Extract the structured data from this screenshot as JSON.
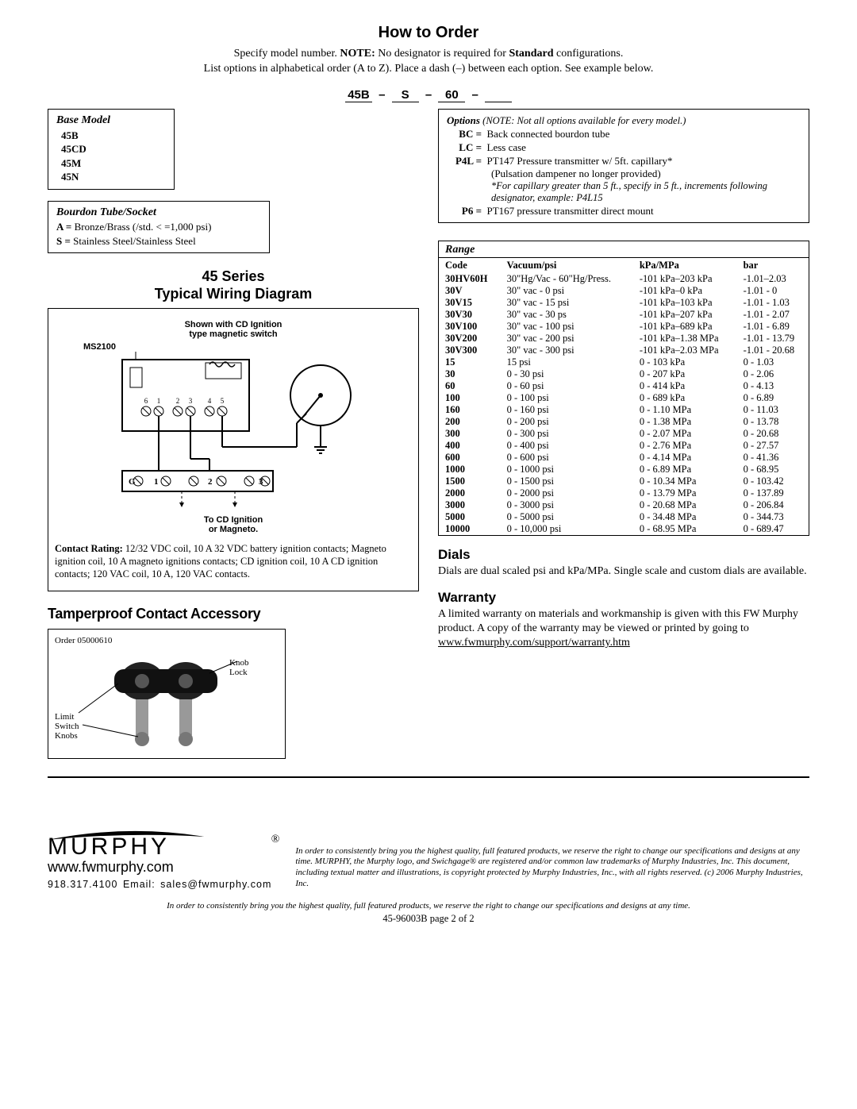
{
  "title": "How to Order",
  "intro1_pre": "Specify model number. ",
  "intro1_bold": "NOTE:",
  "intro1_post": " No designator is required for ",
  "intro1_bold2": "Standard",
  "intro1_end": " configurations.",
  "intro2": "List options in alphabetical order (A to Z). Place a dash (–) between each option. See example below.",
  "designator": {
    "a": "45B",
    "b": "S",
    "c": "60",
    "sep": "–"
  },
  "base": {
    "title": "Base Model",
    "items": [
      "45B",
      "45CD",
      "45M",
      "45N"
    ]
  },
  "bourdon": {
    "title": "Bourdon Tube/Socket",
    "a_label": "A = ",
    "a_text": "Bronze/Brass (/std. < =1,000 psi)",
    "s_label": "S = ",
    "s_text": "Stainless Steel/Stainless Steel"
  },
  "series": {
    "h1": "45 Series",
    "h2": "Typical Wiring Diagram",
    "sub1": "Shown with CD Ignition",
    "sub2": "type magnetic switch",
    "ms": "MS2100",
    "note1": "To CD Ignition",
    "note2": "or Magneto.",
    "rating_label": "Contact Rating:",
    "rating_text": " 12/32 VDC coil, 10 A 32 VDC battery ignition contacts; Magneto ignition coil, 10 A magneto ignitions contacts; CD ignition coil, 10 A CD ignition contacts; 120 VAC coil, 10 A, 120 VAC contacts."
  },
  "tamper": {
    "title": "Tamperproof Contact Accessory",
    "order": "Order 05000610",
    "knob": "Knob Lock",
    "limit": "Limit Switch Knobs"
  },
  "options": {
    "title": "Options",
    "title_note": "(NOTE: Not all options available for every model.)",
    "bc": {
      "code": "BC =",
      "text": "Back connected bourdon tube"
    },
    "lc": {
      "code": "LC =",
      "text": "Less case"
    },
    "p4l": {
      "code": "P4L =",
      "text": "PT147 Pressure transmitter w/ 5ft. capillary*"
    },
    "p4l_sub": "(Pulsation dampener no longer provided)",
    "p4l_note": "*For capillary greater than 5 ft., specify in 5 ft., increments following designator, example: P4L15",
    "p6": {
      "code": "P6 =",
      "text": "PT167 pressure transmitter direct mount"
    }
  },
  "range": {
    "title": "Range",
    "headers": [
      "Code",
      "Vacuum/psi",
      "kPa/MPa",
      "bar"
    ],
    "rows": [
      [
        "30HV60H",
        "30\"Hg/Vac - 60\"Hg/Press.",
        "-101 kPa–203 kPa",
        "-1.01–2.03"
      ],
      [
        "30V",
        "30\"  vac - 0 psi",
        "-101 kPa–0 kPa",
        "-1.01 - 0"
      ],
      [
        "30V15",
        "30\"  vac - 15 psi",
        "-101 kPa–103 kPa",
        "-1.01 - 1.03"
      ],
      [
        "30V30",
        "30\"  vac - 30 ps",
        "-101 kPa–207 kPa",
        "-1.01 - 2.07"
      ],
      [
        "30V100",
        "30\"  vac - 100 psi",
        "-101 kPa–689 kPa",
        "-1.01 - 6.89"
      ],
      [
        "30V200",
        "30\"  vac - 200 psi",
        "-101 kPa–1.38 MPa",
        "-1.01 - 13.79"
      ],
      [
        "30V300",
        "30\"  vac - 300 psi",
        "-101 kPa–2.03 MPa",
        "-1.01 - 20.68"
      ],
      [
        "15",
        "15 psi",
        "0 - 103 kPa",
        "0 - 1.03"
      ],
      [
        "30",
        "0 - 30 psi",
        "0 - 207 kPa",
        "0 - 2.06"
      ],
      [
        "60",
        "0 - 60 psi",
        "0 - 414 kPa",
        "0 - 4.13"
      ],
      [
        "100",
        "0 - 100 psi",
        "0 - 689 kPa",
        "0 - 6.89"
      ],
      [
        "160",
        "0 - 160 psi",
        "0 - 1.10 MPa",
        "0 - 11.03"
      ],
      [
        "200",
        "0 - 200 psi",
        "0 - 1.38 MPa",
        "0 - 13.78"
      ],
      [
        "300",
        "0 - 300 psi",
        "0 - 2.07 MPa",
        "0 - 20.68"
      ],
      [
        "400",
        "0 - 400 psi",
        "0 - 2.76 MPa",
        "0 - 27.57"
      ],
      [
        "600",
        "0 - 600 psi",
        "0 - 4.14 MPa",
        "0 - 41.36"
      ],
      [
        "1000",
        "0 - 1000 psi",
        "0 - 6.89 MPa",
        "0 - 68.95"
      ],
      [
        "1500",
        "0 - 1500 psi",
        "0 - 10.34 MPa",
        "0 - 103.42"
      ],
      [
        "2000",
        "0 - 2000 psi",
        "0 - 13.79 MPa",
        "0 - 137.89"
      ],
      [
        "3000",
        "0 - 3000 psi",
        "0 - 20.68 MPa",
        "0 - 206.84"
      ],
      [
        "5000",
        "0 - 5000 psi",
        "0 - 34.48 MPa",
        "0 - 344.73"
      ],
      [
        "10000",
        "0 - 10,000 psi",
        "0 - 68.95 MPa",
        "0 - 689.47"
      ]
    ]
  },
  "dials": {
    "title": "Dials",
    "text": "Dials are dual scaled psi and kPa/MPa. Single scale and custom dials are available."
  },
  "warranty": {
    "title": "Warranty",
    "text_pre": "A limited warranty on materials and workmanship is given with this FW Murphy product. A copy of the warranty may be viewed or printed by going to ",
    "link": "www.fwmurphy.com/support/warranty.htm"
  },
  "footer": {
    "brand": "MURPHY",
    "url": "www.fwmurphy.com",
    "contact": "918.317.4100   Email: sales@fwmurphy.com",
    "legal": "In order to consistently bring you the highest quality, full featured products, we reserve the right to change our specifications and designs at any time. MURPHY, the Murphy logo, and Swichgage® are registered and/or common law trademarks of Murphy Industries, Inc. This document, including textual matter and illustrations, is copyright protected by Murphy Industries, Inc., with all rights reserved. (c) 2006 Murphy Industries, Inc.",
    "note": "In order to consistently bring you the highest quality, full featured products, we reserve the right to change our specifications and designs at any time.",
    "page": "45-96003B page 2 of 2"
  }
}
